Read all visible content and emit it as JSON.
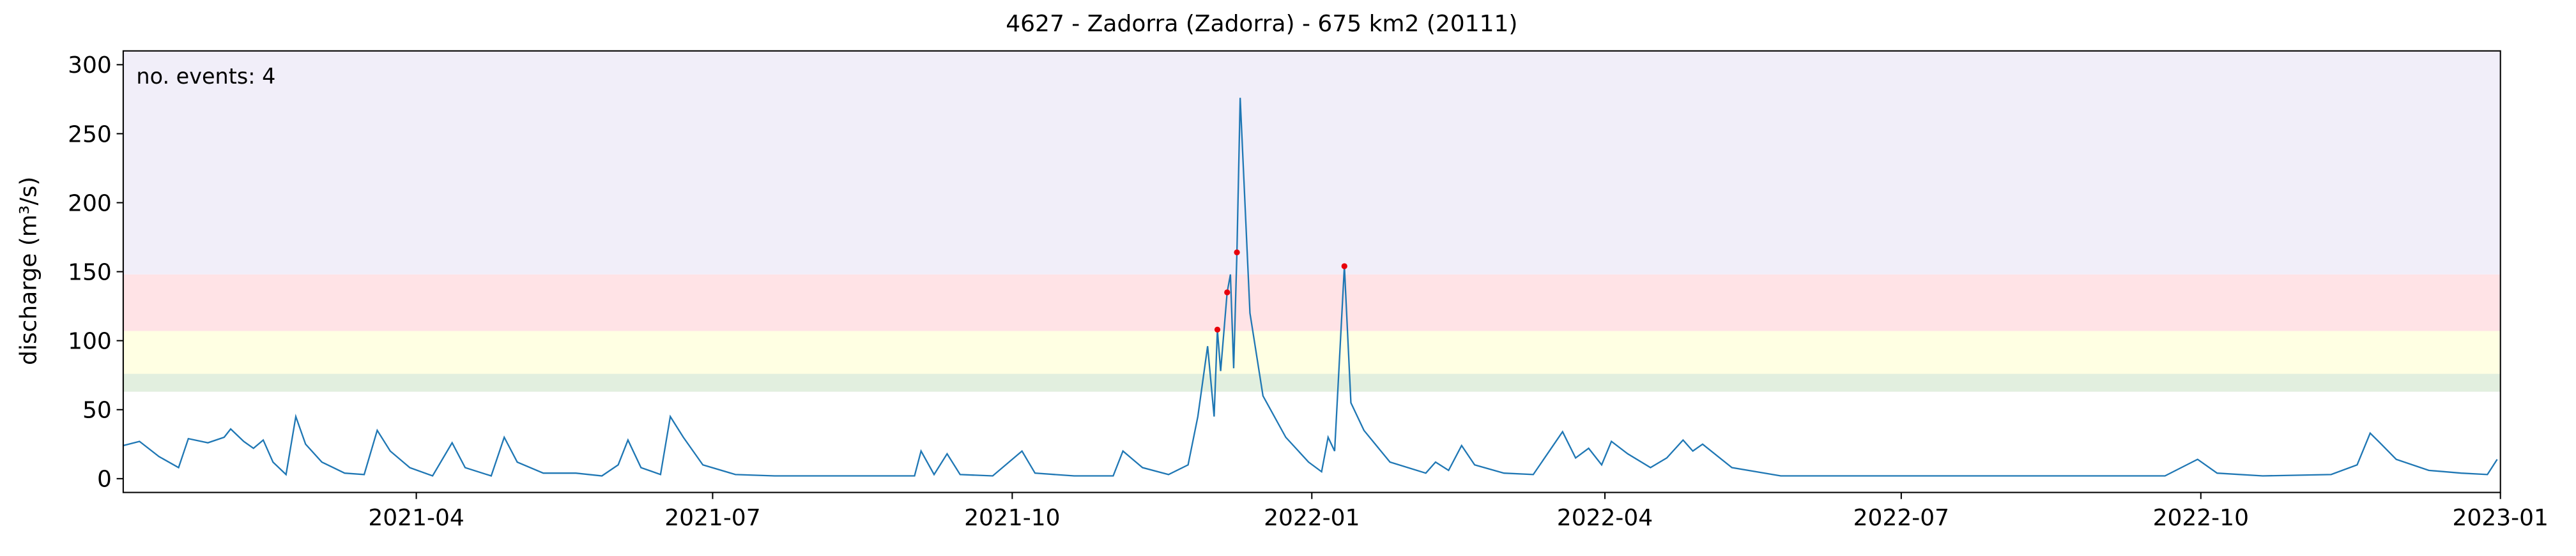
{
  "chart_data": {
    "type": "line",
    "title": "4627 - Zadorra (Zadorra) - 675 km2 (20111)",
    "ylabel": "discharge (m³/s)",
    "annotation": "no. events: 4",
    "annotation_color": "#e8000b",
    "color": "#1f77b4",
    "xlim": [
      "2021-01-01",
      "2023-01-01"
    ],
    "xticks": [
      {
        "value": "2021-04-01",
        "label": "2021-04"
      },
      {
        "value": "2021-07-01",
        "label": "2021-07"
      },
      {
        "value": "2021-10-01",
        "label": "2021-10"
      },
      {
        "value": "2022-01-01",
        "label": "2022-01"
      },
      {
        "value": "2022-04-01",
        "label": "2022-04"
      },
      {
        "value": "2022-07-01",
        "label": "2022-07"
      },
      {
        "value": "2022-10-01",
        "label": "2022-10"
      },
      {
        "value": "2023-01-01",
        "label": "2023-01"
      }
    ],
    "ylim": [
      -10,
      310
    ],
    "yticks": [
      0,
      50,
      100,
      150,
      200,
      250,
      300
    ],
    "bands": [
      {
        "range": [
          63,
          76
        ],
        "color": "#e2efdf"
      },
      {
        "range": [
          76,
          107
        ],
        "color": "#ffffe3"
      },
      {
        "range": [
          107,
          148
        ],
        "color": "#ffe3e6"
      },
      {
        "range": [
          148,
          310
        ],
        "color": "#f1eef9"
      }
    ],
    "x": [
      "2021-01-01",
      "2021-01-06",
      "2021-01-12",
      "2021-01-18",
      "2021-01-21",
      "2021-01-27",
      "2021-02-01",
      "2021-02-03",
      "2021-02-07",
      "2021-02-10",
      "2021-02-13",
      "2021-02-16",
      "2021-02-20",
      "2021-02-23",
      "2021-02-26",
      "2021-03-03",
      "2021-03-10",
      "2021-03-16",
      "2021-03-20",
      "2021-03-24",
      "2021-03-30",
      "2021-04-06",
      "2021-04-12",
      "2021-04-16",
      "2021-04-24",
      "2021-04-28",
      "2021-05-02",
      "2021-05-10",
      "2021-05-20",
      "2021-05-28",
      "2021-06-02",
      "2021-06-05",
      "2021-06-09",
      "2021-06-15",
      "2021-06-18",
      "2021-06-22",
      "2021-06-28",
      "2021-07-08",
      "2021-07-20",
      "2021-08-10",
      "2021-09-01",
      "2021-09-03",
      "2021-09-07",
      "2021-09-11",
      "2021-09-15",
      "2021-09-25",
      "2021-10-04",
      "2021-10-08",
      "2021-10-20",
      "2021-11-01",
      "2021-11-04",
      "2021-11-10",
      "2021-11-18",
      "2021-11-24",
      "2021-11-27",
      "2021-11-30",
      "2021-12-02",
      "2021-12-03",
      "2021-12-04",
      "2021-12-06",
      "2021-12-07",
      "2021-12-08",
      "2021-12-09",
      "2021-12-10",
      "2021-12-13",
      "2021-12-17",
      "2021-12-24",
      "2021-12-31",
      "2022-01-04",
      "2022-01-06",
      "2022-01-08",
      "2022-01-11",
      "2022-01-13",
      "2022-01-17",
      "2022-01-25",
      "2022-02-05",
      "2022-02-08",
      "2022-02-12",
      "2022-02-16",
      "2022-02-20",
      "2022-03-01",
      "2022-03-10",
      "2022-03-19",
      "2022-03-23",
      "2022-03-27",
      "2022-03-31",
      "2022-04-03",
      "2022-04-08",
      "2022-04-15",
      "2022-04-20",
      "2022-04-25",
      "2022-04-28",
      "2022-05-01",
      "2022-05-10",
      "2022-05-25",
      "2022-06-20",
      "2022-08-01",
      "2022-09-20",
      "2022-09-30",
      "2022-10-06",
      "2022-10-20",
      "2022-11-10",
      "2022-11-18",
      "2022-11-22",
      "2022-11-25",
      "2022-11-30",
      "2022-12-10",
      "2022-12-20",
      "2022-12-28",
      "2022-12-31"
    ],
    "values": [
      24,
      27,
      16,
      8,
      29,
      26,
      30,
      36,
      27,
      22,
      28,
      12,
      3,
      45,
      25,
      12,
      4,
      3,
      35,
      20,
      8,
      2,
      26,
      8,
      2,
      30,
      12,
      4,
      4,
      2,
      10,
      28,
      8,
      3,
      45,
      30,
      10,
      3,
      2,
      2,
      2,
      20,
      3,
      18,
      3,
      2,
      20,
      4,
      2,
      2,
      20,
      8,
      3,
      10,
      45,
      96,
      45,
      108,
      78,
      135,
      148,
      80,
      164,
      276,
      120,
      60,
      30,
      12,
      5,
      30,
      20,
      154,
      55,
      35,
      12,
      4,
      12,
      6,
      24,
      10,
      4,
      3,
      34,
      15,
      22,
      10,
      27,
      18,
      8,
      15,
      28,
      20,
      25,
      8,
      2,
      2,
      2,
      2,
      14,
      4,
      2,
      3,
      10,
      33,
      26,
      14,
      6,
      4,
      3,
      14
    ],
    "events": {
      "color": "#e8000b",
      "x": [
        "2021-12-03",
        "2021-12-06",
        "2021-12-09",
        "2022-01-11"
      ],
      "values": [
        108,
        135,
        164,
        154
      ]
    }
  }
}
